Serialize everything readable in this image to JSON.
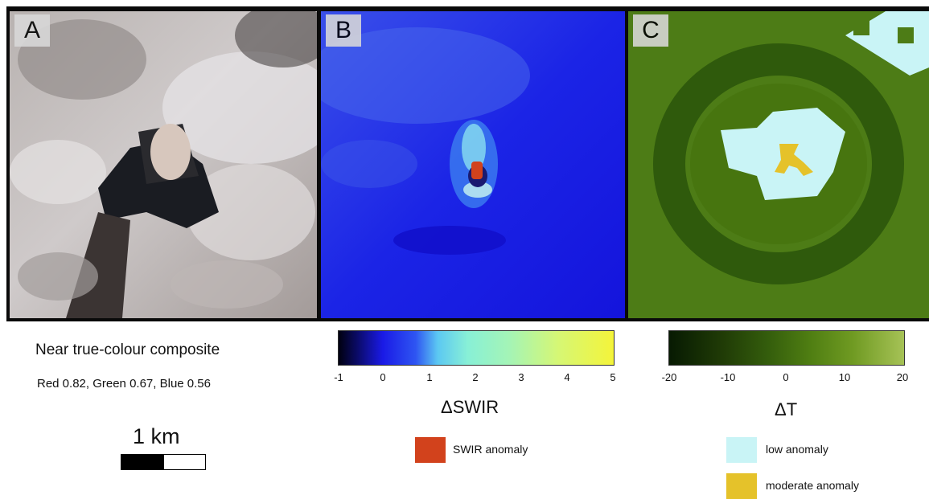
{
  "panels": [
    {
      "letter": "A"
    },
    {
      "letter": "B"
    },
    {
      "letter": "C"
    }
  ],
  "composite": {
    "title": "Near true-colour composite",
    "bands": "Red 0.82, Green 0.67, Blue 0.56"
  },
  "scale_bar": {
    "label": "1 km"
  },
  "swir": {
    "ticks": [
      "-1",
      "0",
      "1",
      "2",
      "3",
      "4",
      "5"
    ],
    "label": "ΔSWIR",
    "legend": "SWIR anomaly",
    "colors": {
      "anomaly": "#d2421c"
    }
  },
  "temp": {
    "ticks": [
      "-20",
      "-10",
      "0",
      "10",
      "20"
    ],
    "label": "ΔT",
    "legend_low": "low anomaly",
    "legend_moderate": "moderate anomaly",
    "colors": {
      "low": "#c9f4f6",
      "moderate": "#e5c22a"
    }
  }
}
